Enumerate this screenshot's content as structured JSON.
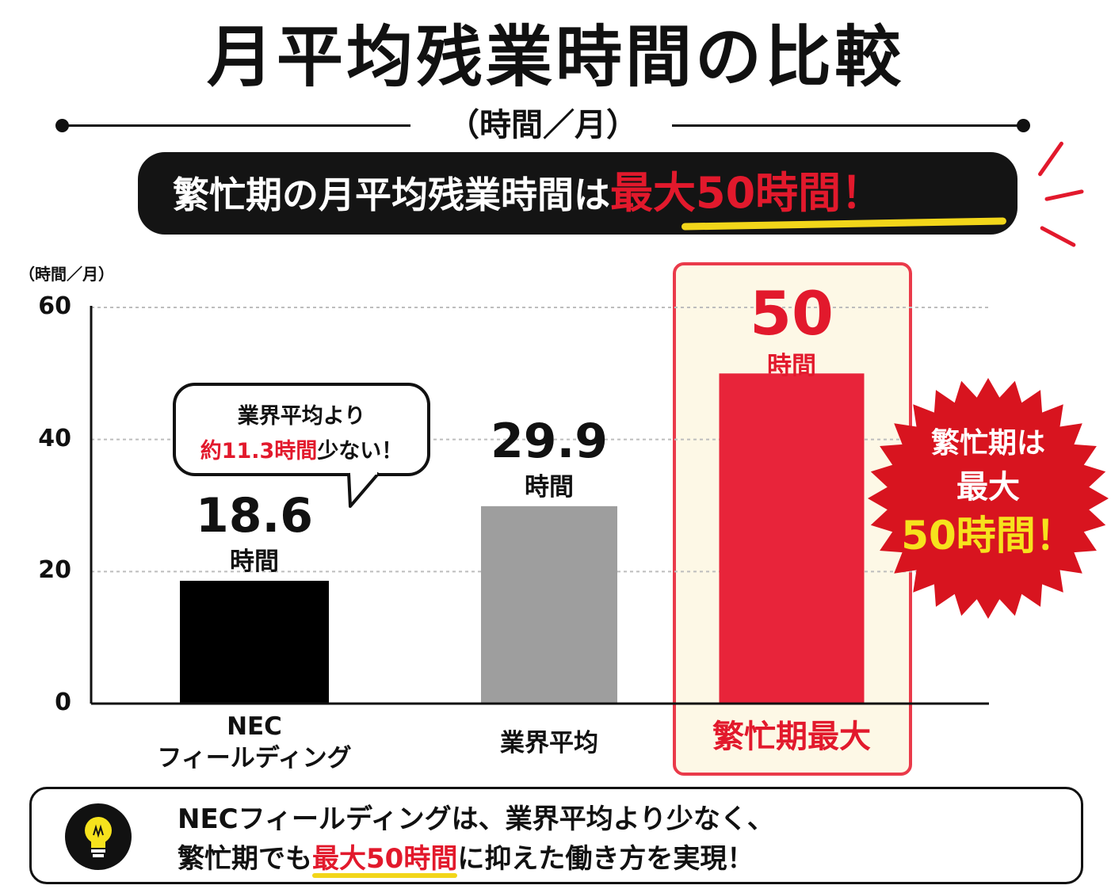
{
  "header": {
    "title": "月平均残業時間の比較",
    "subtitle": "（時間／月）"
  },
  "banner": {
    "text": "繁忙期の月平均残業時間は",
    "highlight": "最大50時間！"
  },
  "chart_data": {
    "type": "bar",
    "unit_label": "（時間／月）",
    "categories": [
      "NEC\nフィールディング",
      "業界平均",
      "繁忙期最大"
    ],
    "category_lines": [
      [
        "NEC",
        "フィールディング"
      ],
      [
        "業界平均"
      ],
      [
        "繁忙期最大"
      ]
    ],
    "values": [
      18.6,
      29.9,
      50
    ],
    "value_labels": [
      "18.6",
      "29.9",
      "50"
    ],
    "value_unit": "時間",
    "yticks": [
      0,
      20,
      40,
      60
    ],
    "ylim": [
      0,
      60
    ],
    "grid": true,
    "colors": [
      "#000000",
      "#9e9e9e",
      "#e8243a"
    ]
  },
  "callout": {
    "line1": "業界平均より",
    "line2_highlight": "約11.3時間",
    "line2_rest": "少ない！"
  },
  "starburst": {
    "line1": "繁忙期は",
    "line2": "最大",
    "line3": "50時間！",
    "color": "#d8141f"
  },
  "footer": {
    "line1": "NECフィールディングは、業界平均より少なく、",
    "line2_pre": "繁忙期でも",
    "line2_highlight": "最大50時間",
    "line2_post": "に抑えた働き方を実現！",
    "icon": "lightbulb-icon"
  }
}
